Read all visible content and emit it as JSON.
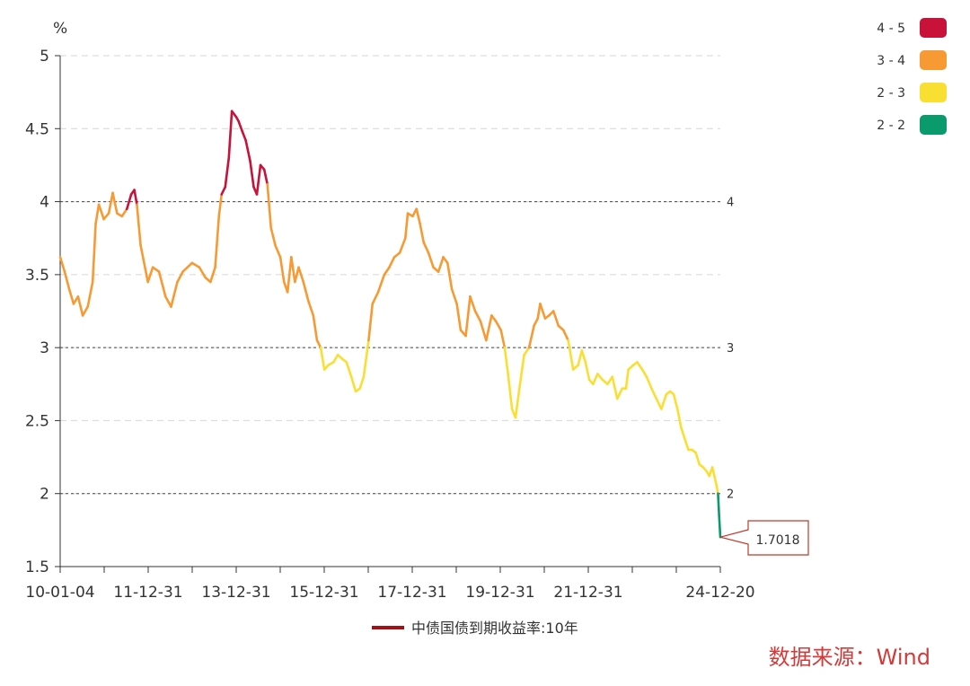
{
  "chart_data": {
    "type": "line",
    "ylabel": "%",
    "ylim": [
      1.5,
      5
    ],
    "yticks": [
      "1.5",
      "2",
      "2.5",
      "3",
      "3.5",
      "4",
      "4.5",
      "5"
    ],
    "xticks": [
      "10-01-04",
      "11-12-31",
      "13-12-31",
      "15-12-31",
      "17-12-31",
      "19-12-31",
      "21-12-31",
      "24-12-20"
    ],
    "xlim": [
      "2010-01-04",
      "2024-12-20"
    ],
    "grid": "horizontal dashed",
    "series": [
      {
        "name": "中债国债到期收益率:10年",
        "color": "#a50f15",
        "points": [
          [
            "2010-01-04",
            3.62
          ],
          [
            "2010-02-10",
            3.52
          ],
          [
            "2010-03-20",
            3.4
          ],
          [
            "2010-04-25",
            3.3
          ],
          [
            "2010-06-01",
            3.35
          ],
          [
            "2010-07-10",
            3.22
          ],
          [
            "2010-08-20",
            3.28
          ],
          [
            "2010-09-30",
            3.45
          ],
          [
            "2010-10-25",
            3.85
          ],
          [
            "2010-11-20",
            3.98
          ],
          [
            "2010-12-31",
            3.88
          ],
          [
            "2011-02-10",
            3.92
          ],
          [
            "2011-03-15",
            4.06
          ],
          [
            "2011-04-20",
            3.92
          ],
          [
            "2011-05-31",
            3.9
          ],
          [
            "2011-07-10",
            3.95
          ],
          [
            "2011-08-15",
            4.05
          ],
          [
            "2011-09-10",
            4.08
          ],
          [
            "2011-10-01",
            3.98
          ],
          [
            "2011-11-01",
            3.7
          ],
          [
            "2011-12-31",
            3.45
          ],
          [
            "2012-02-10",
            3.55
          ],
          [
            "2012-04-01",
            3.52
          ],
          [
            "2012-05-25",
            3.35
          ],
          [
            "2012-07-10",
            3.28
          ],
          [
            "2012-08-31",
            3.45
          ],
          [
            "2012-10-15",
            3.52
          ],
          [
            "2012-12-31",
            3.58
          ],
          [
            "2013-03-01",
            3.55
          ],
          [
            "2013-04-20",
            3.48
          ],
          [
            "2013-06-01",
            3.45
          ],
          [
            "2013-07-10",
            3.55
          ],
          [
            "2013-08-10",
            3.9
          ],
          [
            "2013-09-01",
            4.05
          ],
          [
            "2013-10-01",
            4.1
          ],
          [
            "2013-10-31",
            4.3
          ],
          [
            "2013-11-25",
            4.62
          ],
          [
            "2013-12-31",
            4.58
          ],
          [
            "2014-01-20",
            4.55
          ],
          [
            "2014-02-20",
            4.48
          ],
          [
            "2014-03-20",
            4.42
          ],
          [
            "2014-04-25",
            4.28
          ],
          [
            "2014-05-25",
            4.1
          ],
          [
            "2014-06-20",
            4.05
          ],
          [
            "2014-07-20",
            4.25
          ],
          [
            "2014-08-20",
            4.22
          ],
          [
            "2014-09-15",
            4.12
          ],
          [
            "2014-10-15",
            3.82
          ],
          [
            "2014-11-20",
            3.7
          ],
          [
            "2014-12-31",
            3.62
          ],
          [
            "2015-01-31",
            3.45
          ],
          [
            "2015-03-01",
            3.38
          ],
          [
            "2015-04-01",
            3.62
          ],
          [
            "2015-05-01",
            3.45
          ],
          [
            "2015-06-01",
            3.55
          ],
          [
            "2015-07-10",
            3.45
          ],
          [
            "2015-08-20",
            3.32
          ],
          [
            "2015-09-30",
            3.22
          ],
          [
            "2015-10-31",
            3.05
          ],
          [
            "2015-11-30",
            3.0
          ],
          [
            "2015-12-31",
            2.85
          ],
          [
            "2016-02-01",
            2.88
          ],
          [
            "2016-03-15",
            2.9
          ],
          [
            "2016-04-20",
            2.95
          ],
          [
            "2016-05-31",
            2.92
          ],
          [
            "2016-07-01",
            2.9
          ],
          [
            "2016-08-10",
            2.8
          ],
          [
            "2016-09-15",
            2.7
          ],
          [
            "2016-10-20",
            2.72
          ],
          [
            "2016-11-20",
            2.8
          ],
          [
            "2016-12-31",
            3.05
          ],
          [
            "2017-02-01",
            3.3
          ],
          [
            "2017-03-20",
            3.38
          ],
          [
            "2017-05-10",
            3.5
          ],
          [
            "2017-06-20",
            3.55
          ],
          [
            "2017-08-01",
            3.62
          ],
          [
            "2017-09-15",
            3.65
          ],
          [
            "2017-10-31",
            3.75
          ],
          [
            "2017-11-20",
            3.92
          ],
          [
            "2017-12-31",
            3.9
          ],
          [
            "2018-01-31",
            3.95
          ],
          [
            "2018-03-01",
            3.85
          ],
          [
            "2018-04-01",
            3.72
          ],
          [
            "2018-05-10",
            3.65
          ],
          [
            "2018-06-20",
            3.55
          ],
          [
            "2018-08-01",
            3.52
          ],
          [
            "2018-09-10",
            3.62
          ],
          [
            "2018-10-15",
            3.58
          ],
          [
            "2018-11-20",
            3.4
          ],
          [
            "2018-12-31",
            3.3
          ],
          [
            "2019-02-01",
            3.12
          ],
          [
            "2019-03-15",
            3.08
          ],
          [
            "2019-04-20",
            3.35
          ],
          [
            "2019-06-01",
            3.25
          ],
          [
            "2019-07-15",
            3.18
          ],
          [
            "2019-08-31",
            3.05
          ],
          [
            "2019-10-15",
            3.22
          ],
          [
            "2019-11-20",
            3.18
          ],
          [
            "2019-12-31",
            3.12
          ],
          [
            "2020-01-31",
            3.0
          ],
          [
            "2020-02-28",
            2.82
          ],
          [
            "2020-04-01",
            2.58
          ],
          [
            "2020-04-30",
            2.52
          ],
          [
            "2020-06-01",
            2.72
          ],
          [
            "2020-07-10",
            2.95
          ],
          [
            "2020-08-20",
            3.0
          ],
          [
            "2020-09-30",
            3.15
          ],
          [
            "2020-10-31",
            3.2
          ],
          [
            "2020-11-20",
            3.3
          ],
          [
            "2020-12-31",
            3.2
          ],
          [
            "2021-02-01",
            3.22
          ],
          [
            "2021-03-10",
            3.25
          ],
          [
            "2021-04-20",
            3.15
          ],
          [
            "2021-05-31",
            3.12
          ],
          [
            "2021-07-10",
            3.05
          ],
          [
            "2021-08-20",
            2.85
          ],
          [
            "2021-09-30",
            2.88
          ],
          [
            "2021-10-31",
            2.98
          ],
          [
            "2021-11-30",
            2.9
          ],
          [
            "2021-12-31",
            2.78
          ],
          [
            "2022-02-01",
            2.75
          ],
          [
            "2022-03-10",
            2.82
          ],
          [
            "2022-04-20",
            2.78
          ],
          [
            "2022-05-31",
            2.75
          ],
          [
            "2022-07-10",
            2.8
          ],
          [
            "2022-08-20",
            2.65
          ],
          [
            "2022-09-30",
            2.72
          ],
          [
            "2022-10-31",
            2.72
          ],
          [
            "2022-11-20",
            2.85
          ],
          [
            "2022-12-31",
            2.88
          ],
          [
            "2023-02-01",
            2.9
          ],
          [
            "2023-03-15",
            2.85
          ],
          [
            "2023-04-20",
            2.8
          ],
          [
            "2023-05-31",
            2.72
          ],
          [
            "2023-07-10",
            2.65
          ],
          [
            "2023-08-20",
            2.58
          ],
          [
            "2023-09-30",
            2.68
          ],
          [
            "2023-10-31",
            2.7
          ],
          [
            "2023-11-30",
            2.68
          ],
          [
            "2023-12-31",
            2.58
          ],
          [
            "2024-01-31",
            2.45
          ],
          [
            "2024-02-28",
            2.38
          ],
          [
            "2024-03-31",
            2.3
          ],
          [
            "2024-04-30",
            2.3
          ],
          [
            "2024-05-31",
            2.28
          ],
          [
            "2024-06-30",
            2.2
          ],
          [
            "2024-07-31",
            2.18
          ],
          [
            "2024-08-31",
            2.15
          ],
          [
            "2024-09-20",
            2.12
          ],
          [
            "2024-10-15",
            2.18
          ],
          [
            "2024-11-01",
            2.12
          ],
          [
            "2024-11-20",
            2.05
          ],
          [
            "2024-12-01",
            2.0
          ],
          [
            "2024-12-10",
            1.85
          ],
          [
            "2024-12-20",
            1.7018
          ]
        ]
      }
    ],
    "visual_map": [
      {
        "label": "4 - 5",
        "min": 4,
        "max": 5,
        "color": "#c8123a"
      },
      {
        "label": "3 - 4",
        "min": 3,
        "max": 4,
        "color": "#f79a33"
      },
      {
        "label": "2 - 3",
        "min": 2,
        "max": 3,
        "color": "#fadf33"
      },
      {
        "label": "2 - 2",
        "min": 1.5,
        "max": 2,
        "color": "#0a9a6b"
      }
    ],
    "reference_lines": [
      {
        "value": 4,
        "label": "4"
      },
      {
        "value": 3,
        "label": "3"
      },
      {
        "value": 2,
        "label": "2"
      }
    ],
    "annotation": {
      "date": "2024-12-20",
      "value": 1.7018,
      "label": "1.7018"
    },
    "legend": {
      "placement": "bottom-center",
      "label": "中债国债到期收益率:10年",
      "color": "#a50f15"
    }
  },
  "source_text": "数据来源：Wind"
}
